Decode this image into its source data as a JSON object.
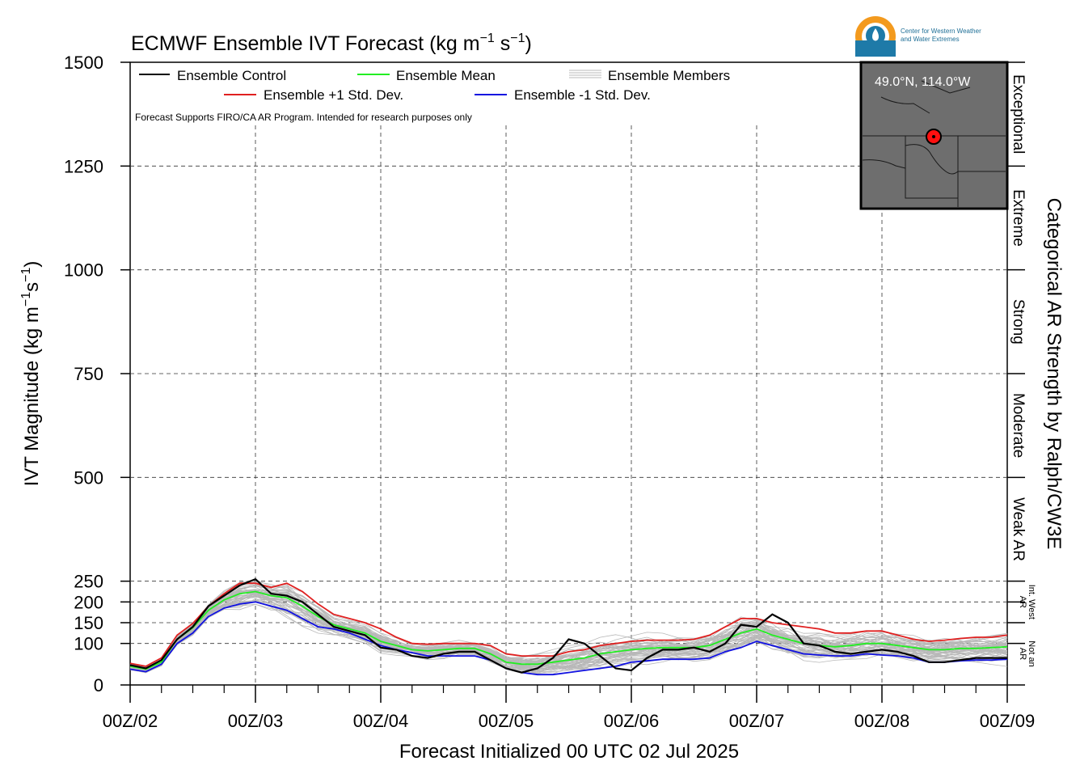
{
  "chart_data": {
    "type": "line",
    "title": "ECMWF Ensemble IVT Forecast (kg m",
    "title_sup1": "−1",
    "title_mid": " s",
    "title_sup2": "−1",
    "title_end": ")",
    "ylabel": "IVT Magnitude (kg m",
    "ylabel_sup1": "−1",
    "ylabel_mid": "s",
    "ylabel_sup2": "−1",
    "ylabel_end": ")",
    "xlabel": "Forecast Initialized 00 UTC 02 Jul 2025",
    "right_label": "Categorical AR Strength by Ralph/CW3E",
    "ylim": [
      0,
      1500
    ],
    "y_ticks": [
      "0",
      "100",
      "150",
      "200",
      "250",
      "500",
      "750",
      "1000",
      "1250",
      "1500"
    ],
    "y_tick_values": [
      0,
      100,
      150,
      200,
      250,
      500,
      750,
      1000,
      1250,
      1500
    ],
    "x_ticks": [
      "00Z/02",
      "00Z/03",
      "00Z/04",
      "00Z/05",
      "00Z/06",
      "00Z/07",
      "00Z/08",
      "00Z/09"
    ],
    "x_unit": "forecast hours since 00Z/02",
    "xlim": [
      0,
      168
    ],
    "grid": true,
    "categories_right": [
      {
        "label": "Exceptional",
        "from": 1250,
        "to": 1500
      },
      {
        "label": "Extreme",
        "from": 1000,
        "to": 1250
      },
      {
        "label": "Strong",
        "from": 750,
        "to": 1000
      },
      {
        "label": "Moderate",
        "from": 500,
        "to": 750
      },
      {
        "label": "Weak AR",
        "from": 250,
        "to": 500
      },
      {
        "label": "Int. West AR",
        "from": 150,
        "to": 250
      },
      {
        "label": "Not an AR",
        "from": 0,
        "to": 150
      }
    ],
    "legend": {
      "control": "Ensemble Control",
      "mean": "Ensemble Mean",
      "members": "Ensemble Members",
      "plus_std": "Ensemble +1 Std. Dev.",
      "minus_std": "Ensemble -1 Std. Dev.",
      "note": "Forecast Supports FIRO/CA AR Program. Intended for research purposes only"
    },
    "x": [
      0,
      3,
      6,
      9,
      12,
      15,
      18,
      21,
      24,
      27,
      30,
      33,
      36,
      39,
      42,
      45,
      48,
      51,
      54,
      57,
      60,
      63,
      66,
      69,
      72,
      75,
      78,
      81,
      84,
      87,
      90,
      93,
      96,
      99,
      102,
      105,
      108,
      111,
      114,
      117,
      120,
      123,
      126,
      129,
      132,
      135,
      138,
      141,
      144,
      147,
      150,
      153,
      156,
      159,
      162,
      165,
      168
    ],
    "series": [
      {
        "name": "Ensemble Control",
        "color": "#000000",
        "values": [
          48,
          40,
          60,
          110,
          140,
          190,
          215,
          240,
          255,
          220,
          215,
          200,
          170,
          140,
          130,
          120,
          90,
          85,
          70,
          65,
          75,
          80,
          80,
          60,
          40,
          30,
          40,
          65,
          110,
          100,
          70,
          40,
          35,
          65,
          85,
          85,
          90,
          80,
          100,
          145,
          140,
          170,
          150,
          100,
          95,
          80,
          75,
          80,
          85,
          80,
          70,
          55,
          55,
          60,
          65,
          65,
          65
        ]
      },
      {
        "name": "Ensemble Mean",
        "color": "#22ee22",
        "values": [
          45,
          38,
          55,
          110,
          138,
          180,
          205,
          220,
          225,
          215,
          210,
          190,
          165,
          145,
          135,
          125,
          105,
          95,
          85,
          82,
          85,
          88,
          88,
          75,
          55,
          50,
          50,
          55,
          60,
          65,
          75,
          80,
          85,
          88,
          90,
          90,
          90,
          95,
          110,
          125,
          135,
          120,
          110,
          100,
          95,
          92,
          95,
          100,
          100,
          95,
          90,
          85,
          85,
          88,
          88,
          90,
          92
        ]
      },
      {
        "name": "Ensemble +1 Std. Dev.",
        "color": "#e02020",
        "values": [
          52,
          45,
          65,
          120,
          148,
          190,
          220,
          245,
          245,
          235,
          245,
          225,
          195,
          170,
          160,
          150,
          135,
          115,
          100,
          98,
          100,
          100,
          100,
          95,
          75,
          70,
          70,
          70,
          80,
          85,
          95,
          100,
          105,
          108,
          108,
          108,
          110,
          120,
          140,
          160,
          160,
          150,
          145,
          140,
          135,
          125,
          125,
          130,
          130,
          120,
          110,
          105,
          108,
          112,
          115,
          115,
          120
        ]
      },
      {
        "name": "Ensemble -1 Std. Dev.",
        "color": "#1010e0",
        "values": [
          38,
          32,
          50,
          100,
          125,
          165,
          185,
          195,
          200,
          190,
          180,
          160,
          140,
          135,
          125,
          110,
          95,
          85,
          78,
          70,
          70,
          70,
          70,
          60,
          40,
          30,
          25,
          25,
          30,
          35,
          40,
          45,
          55,
          58,
          62,
          62,
          62,
          65,
          80,
          90,
          105,
          95,
          85,
          75,
          72,
          70,
          70,
          75,
          72,
          70,
          65,
          55,
          55,
          58,
          60,
          60,
          62
        ]
      }
    ],
    "members_color": "#b8b8b8",
    "inset": {
      "location_text": "49.0°N, 114.0°W",
      "point_lat": 49.0,
      "point_lon": -114.0
    },
    "logo": {
      "text_line1": "Center for Western Weather",
      "text_line2": "and Water Extremes"
    }
  }
}
